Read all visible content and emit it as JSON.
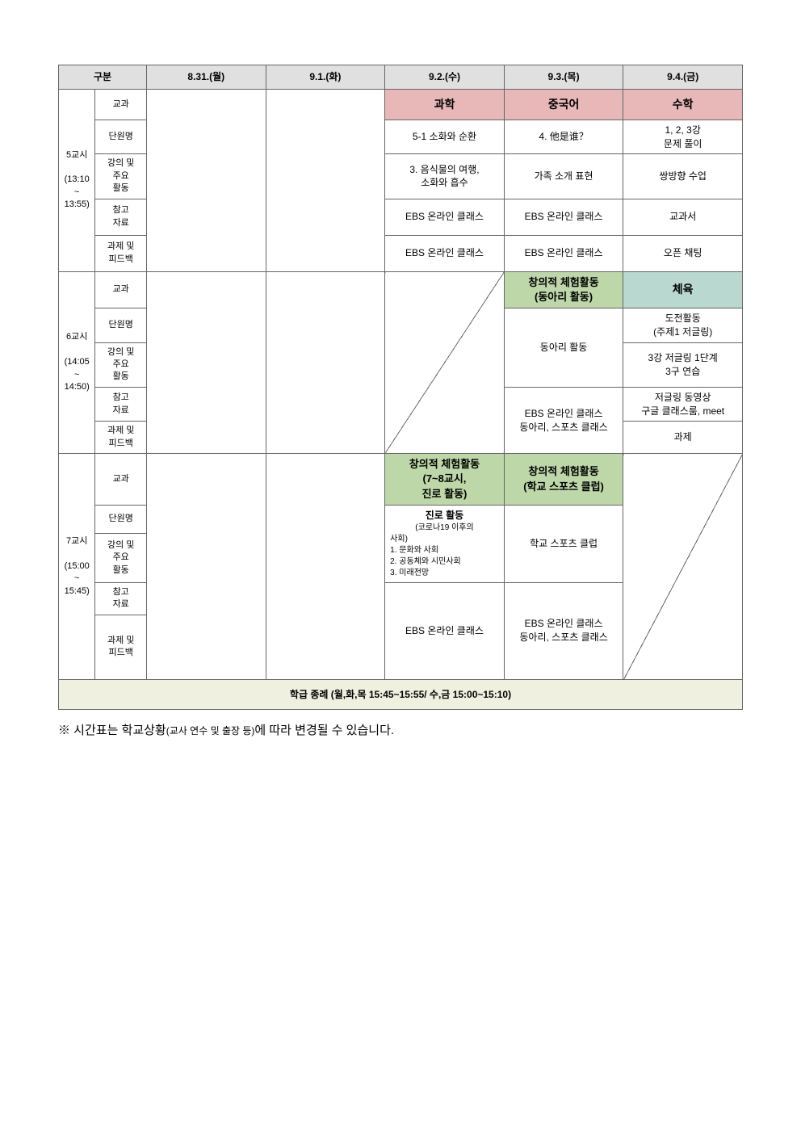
{
  "header": {
    "category_group": "구분",
    "days": [
      "8.31.(월)",
      "9.1.(화)",
      "9.2.(수)",
      "9.3.(목)",
      "9.4.(금)"
    ]
  },
  "categories": {
    "subject": "교과",
    "unit": "단원명",
    "activity": "강의 및\n주요\n활동",
    "reference": "참고\n자료",
    "feedback": "과제 및\n피드백"
  },
  "periods": {
    "p5": "5교시\n\n(13:10\n~\n13:55)",
    "p6": "6교시\n\n(14:05\n~\n14:50)",
    "p7": "7교시\n\n(15:00\n~\n15:45)"
  },
  "p5": {
    "wed": {
      "subject": "과학",
      "unit": "5-1 소화와 순환",
      "activity": "3. 음식물의 여행,\n소화와 흡수",
      "reference": "EBS 온라인 클래스",
      "feedback": "EBS 온라인 클래스"
    },
    "thu": {
      "subject": "중국어",
      "unit": "4. 他是谁？",
      "activity": "가족 소개 표현",
      "reference": "EBS 온라인 클래스",
      "feedback": "EBS 온라인 클래스"
    },
    "fri": {
      "subject": "수학",
      "unit": "1, 2, 3강\n문제 풀이",
      "activity": "쌍방향 수업",
      "reference": "교과서",
      "feedback": "오픈 채팅"
    }
  },
  "p6": {
    "thu": {
      "subject": "창의적 체험활동\n(동아리 활동)",
      "activity": "동아리 활동",
      "reference": "EBS 온라인 클래스\n동아리, 스포츠 클래스"
    },
    "fri": {
      "subject": "체육",
      "unit": "도전활동\n(주제1 저글링)",
      "activity": "3강 저글링 1단계\n3구 연습",
      "reference": "저글링 동영상\n구글 클래스룸, meet",
      "feedback": "과제"
    }
  },
  "p7": {
    "wed": {
      "subject": "창의적 체험활동\n(7~8교시,\n진로 활동)",
      "unit_title": "진로 활동",
      "unit_sub": "(코로나19 이후의",
      "activity": "사회)\n1. 문화와 사회\n2. 공동체와 시민사회\n3. 미래전망",
      "feedback": "EBS 온라인 클래스"
    },
    "thu": {
      "subject": "창의적 체험활동\n(학교 스포츠 클럽)",
      "activity": "학교 스포츠 클럽",
      "feedback": "EBS 온라인 클래스\n동아리, 스포츠 클래스"
    }
  },
  "footer": "학급 종례 (월,화,목 15:45~15:55/ 수,금 15:00~15:10)",
  "note": {
    "prefix": "※ 시간표는 학교상황",
    "small": "(교사 연수 및 출장 등)",
    "suffix": "에 따라 변경될 수 있습니다."
  },
  "colors": {
    "header_bg": "#e0e0e0",
    "pink": "#e8b8b8",
    "green": "#bdd7a8",
    "teal": "#b8d8d0",
    "footer_bg": "#f0f0e0",
    "border": "#666666"
  }
}
